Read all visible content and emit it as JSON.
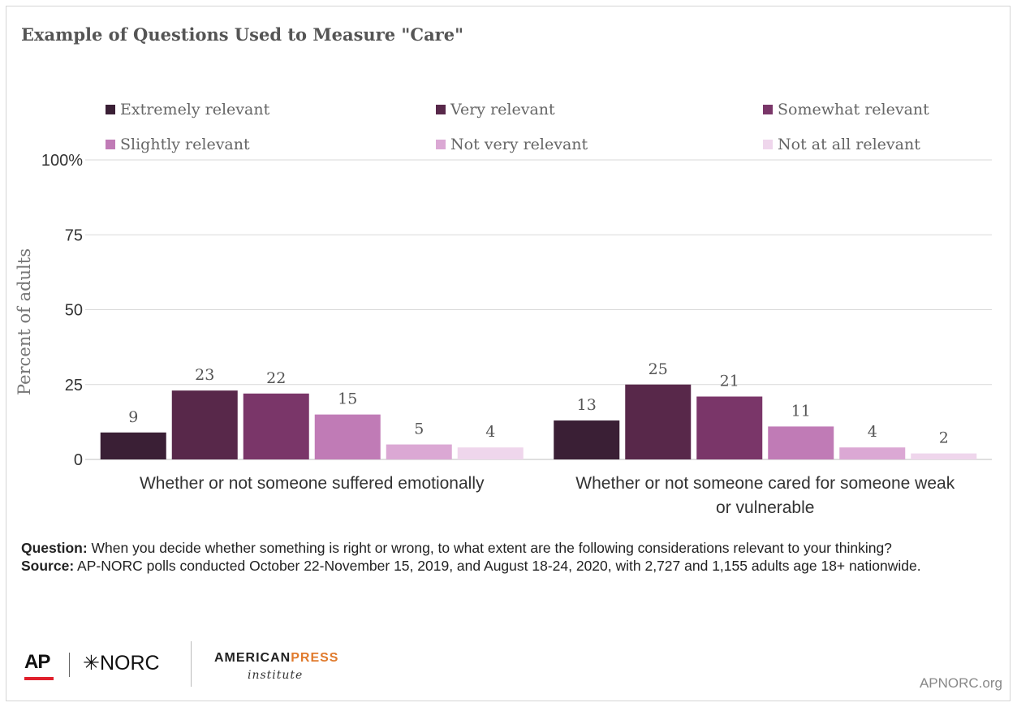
{
  "title": "Example of Questions Used to Measure \"Care\"",
  "legend": [
    {
      "label": "Extremely relevant",
      "color": "#3a1f35"
    },
    {
      "label": "Very relevant",
      "color": "#58284a"
    },
    {
      "label": "Somewhat relevant",
      "color": "#7a3669"
    },
    {
      "label": "Slightly relevant",
      "color": "#c07bb6"
    },
    {
      "label": "Not very relevant",
      "color": "#dba8d4"
    },
    {
      "label": "Not at all relevant",
      "color": "#efd6ec"
    }
  ],
  "chart_data": {
    "type": "bar",
    "categories": [
      "Whether or not someone suffered emotionally",
      "Whether or not someone cared for someone weak or vulnerable"
    ],
    "category_lines": [
      [
        "Whether or not someone suffered emotionally"
      ],
      [
        "Whether or not someone cared for someone weak",
        "or vulnerable"
      ]
    ],
    "series": [
      {
        "name": "Extremely relevant",
        "values": [
          9,
          13
        ]
      },
      {
        "name": "Very relevant",
        "values": [
          23,
          25
        ]
      },
      {
        "name": "Somewhat relevant",
        "values": [
          22,
          21
        ]
      },
      {
        "name": "Slightly relevant",
        "values": [
          15,
          11
        ]
      },
      {
        "name": "Not very relevant",
        "values": [
          5,
          4
        ]
      },
      {
        "name": "Not at all relevant",
        "values": [
          4,
          2
        ]
      }
    ],
    "ylabel": "Percent of adults",
    "ylim": [
      0,
      100
    ],
    "yticks": [
      {
        "value": 0,
        "label": "0"
      },
      {
        "value": 25,
        "label": "25"
      },
      {
        "value": 50,
        "label": "50"
      },
      {
        "value": 75,
        "label": "75"
      },
      {
        "value": 100,
        "label": "100%"
      }
    ],
    "grid": true,
    "legend_position": "top"
  },
  "notes": {
    "question_label": "Question:",
    "question_text": " When you decide whether something is right or wrong, to what extent are the following considerations relevant to your thinking?",
    "source_label": "Source:",
    "source_text": " AP-NORC polls conducted October 22-November 15, 2019, and August 18-24, 2020, with 2,727 and 1,155 adults age 18+ nationwide."
  },
  "logos": {
    "ap": "AP",
    "norc": "✳NORC",
    "api_part1": "AMERICAN",
    "api_part2": "PRESS",
    "api_sub": "institute"
  },
  "site": "APNORC.org"
}
